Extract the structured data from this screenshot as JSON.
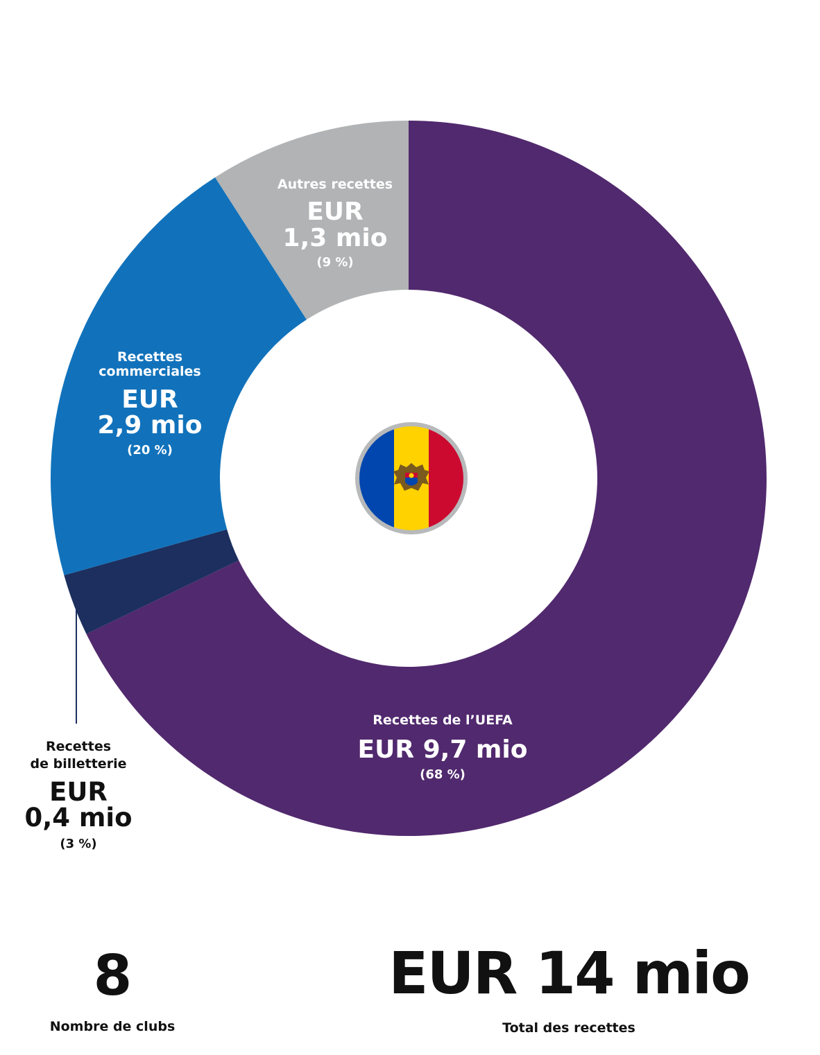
{
  "chart_data": {
    "type": "pie",
    "variant": "donut",
    "slices": [
      {
        "name_lines": [
          "Recettes de l’UEFA"
        ],
        "value_lines": [
          "EUR 9,7 mio"
        ],
        "value": 9.7,
        "pct_label": "(68 %)",
        "percent": 68,
        "color": "#51296e"
      },
      {
        "name_lines": [
          "Recettes",
          "de billetterie"
        ],
        "value_lines": [
          "EUR",
          "0,4 mio"
        ],
        "value": 0.4,
        "pct_label": "(3 %)",
        "percent": 3,
        "color": "#1c2f5e"
      },
      {
        "name_lines": [
          "Recettes",
          "commerciales"
        ],
        "value_lines": [
          "EUR",
          "2,9 mio"
        ],
        "value": 2.9,
        "pct_label": "(20 %)",
        "percent": 20,
        "color": "#1172bb"
      },
      {
        "name_lines": [
          "Autres recettes"
        ],
        "value_lines": [
          "EUR",
          "1,3 mio"
        ],
        "value": 1.3,
        "pct_label": "(9 %)",
        "percent": 9,
        "color": "#b1b3b4"
      }
    ],
    "center_icon": "moldova-flag-icon"
  },
  "summary": {
    "clubs_value": "8",
    "clubs_label": "Nombre de clubs",
    "total_value": "EUR 14 mio",
    "total_label": "Total des recettes"
  },
  "flag_colors": [
    "#0046ae",
    "#ffd200",
    "#cc092f"
  ],
  "text_colors": {
    "inside": "#ffffff",
    "outside": "#111111",
    "leader_line": "#1c2f5e"
  }
}
